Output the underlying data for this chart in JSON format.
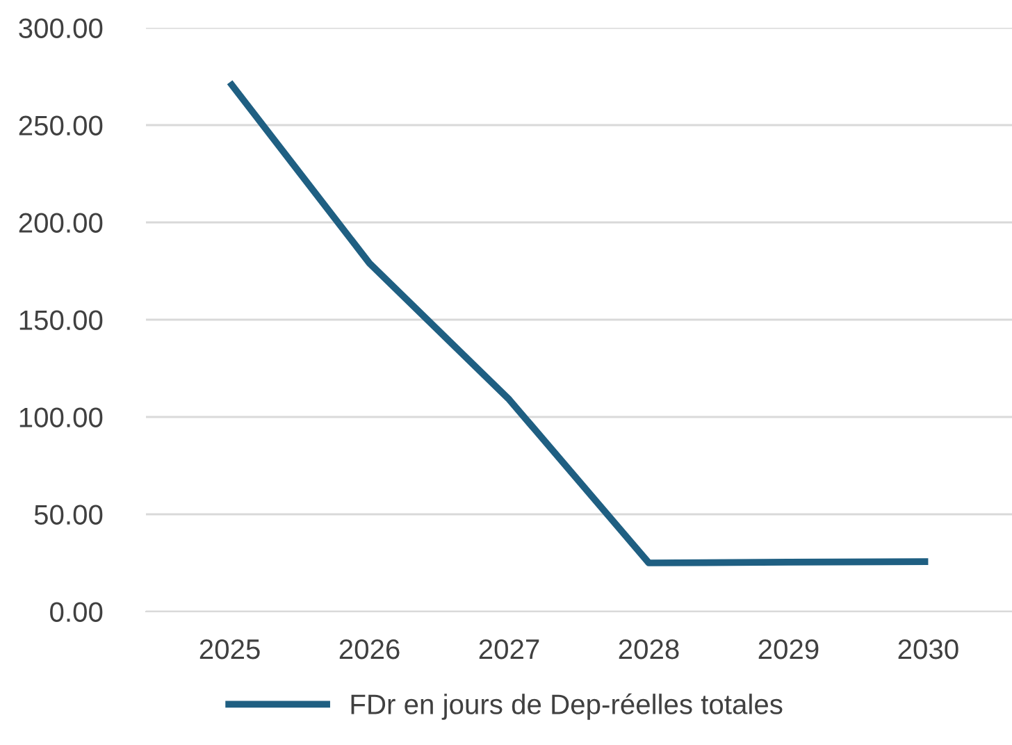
{
  "chart_data": {
    "type": "line",
    "categories": [
      "2025",
      "2026",
      "2027",
      "2028",
      "2029",
      "2030"
    ],
    "series": [
      {
        "name": "FDr en jours de Dep-réelles totales",
        "color": "#1f5f82",
        "values": [
          272,
          179,
          109,
          25,
          25.4,
          25.7
        ]
      }
    ],
    "ylim": [
      0,
      300
    ],
    "yticks": [
      {
        "value": 0,
        "label": "0.00"
      },
      {
        "value": 50,
        "label": "50.00"
      },
      {
        "value": 100,
        "label": "100.00"
      },
      {
        "value": 150,
        "label": "150.00"
      },
      {
        "value": 200,
        "label": "200.00"
      },
      {
        "value": 250,
        "label": "250.00"
      },
      {
        "value": 300,
        "label": "300.00"
      }
    ],
    "grid": "y",
    "legend": "bottom",
    "marker": "none",
    "line_style": "solid"
  }
}
